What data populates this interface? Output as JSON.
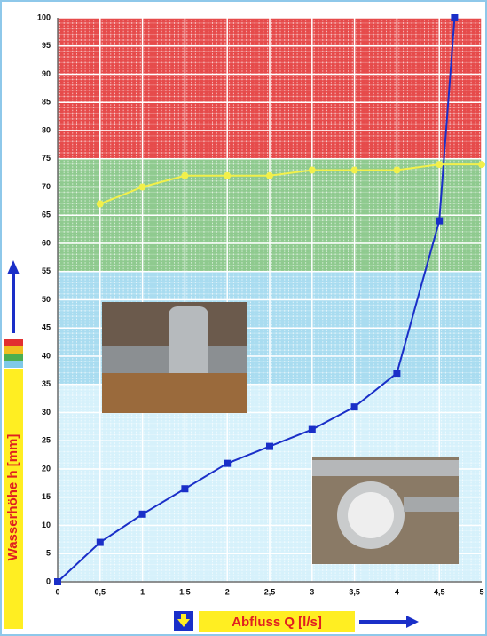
{
  "chart_data": {
    "type": "line",
    "x_label": "Abfluss Q [l/s]",
    "y_label": "Wasserhöhe h [mm]",
    "xlim": [
      0,
      5
    ],
    "ylim": [
      0,
      100
    ],
    "xticks": [
      0,
      {
        "value": 0.5,
        "label": "0,5"
      },
      1,
      {
        "value": 1.5,
        "label": "1,5"
      },
      2,
      {
        "value": 2.5,
        "label": "2,5"
      },
      3,
      {
        "value": 3.5,
        "label": "3,5"
      },
      4,
      {
        "value": 4.5,
        "label": "4,5"
      },
      5
    ],
    "yticks": [
      0,
      5,
      10,
      15,
      20,
      25,
      30,
      35,
      40,
      45,
      50,
      55,
      60,
      65,
      70,
      75,
      80,
      85,
      90,
      95,
      100
    ],
    "grid": true,
    "bands": [
      {
        "from": 0,
        "to": 35,
        "color": "#d6f1fb"
      },
      {
        "from": 35,
        "to": 55,
        "color": "#a9dcf0"
      },
      {
        "from": 55,
        "to": 75,
        "color": "#8fca8f"
      },
      {
        "from": 75,
        "to": 100,
        "color": "#e64b4b"
      }
    ],
    "series": [
      {
        "color": "#1a2fc8",
        "marker": "square",
        "x": [
          0,
          0.5,
          1,
          1.5,
          2,
          2.5,
          3,
          3.5,
          4,
          4.5,
          4.68
        ],
        "values": [
          0,
          7,
          12,
          16.5,
          21,
          24,
          27,
          31,
          37,
          64,
          100
        ]
      },
      {
        "color": "#f2f04a",
        "marker": "circle",
        "x": [
          0.5,
          1,
          1.5,
          2,
          2.5,
          3,
          3.5,
          4,
          4.5,
          5
        ],
        "values": [
          67,
          70,
          72,
          72,
          72,
          73,
          73,
          73,
          74,
          74
        ]
      }
    ]
  }
}
